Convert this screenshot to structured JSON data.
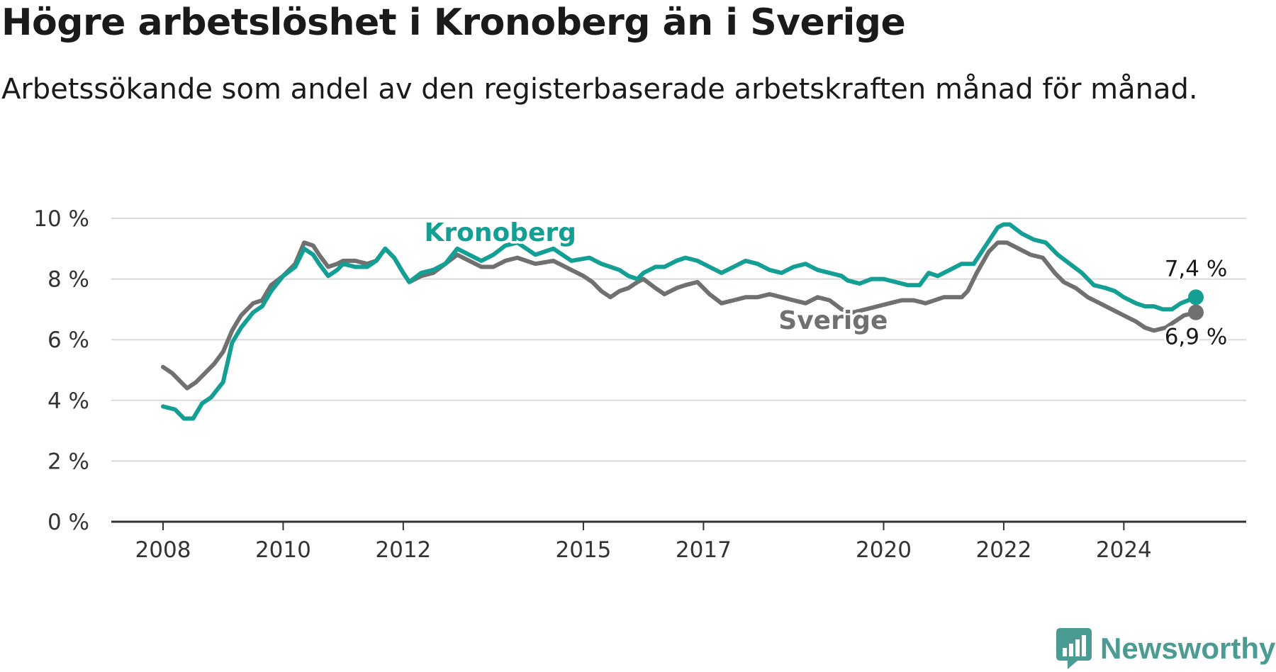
{
  "title": "Högre arbetslöshet i Kronoberg än i Sverige",
  "subtitle": "Arbetssökande som andel av den registerbaserade arbetskraften månad för månad.",
  "logo": {
    "text": "Newsworthy",
    "icon": "newsworthy-logo-icon",
    "color": "#4a9b91"
  },
  "chart_data": {
    "type": "line",
    "title": "",
    "xlabel": "",
    "ylabel": "",
    "xlim": [
      2008,
      2025.2
    ],
    "ylim": [
      0,
      10
    ],
    "grid": true,
    "y_ticks": [
      {
        "value": 0,
        "label": "0 %"
      },
      {
        "value": 2,
        "label": "2 %"
      },
      {
        "value": 4,
        "label": "4 %"
      },
      {
        "value": 6,
        "label": "6 %"
      },
      {
        "value": 8,
        "label": "8 %"
      },
      {
        "value": 10,
        "label": "10 %"
      }
    ],
    "x_ticks": [
      {
        "value": 2008,
        "label": "2008"
      },
      {
        "value": 2010,
        "label": "2010"
      },
      {
        "value": 2012,
        "label": "2012"
      },
      {
        "value": 2015,
        "label": "2015"
      },
      {
        "value": 2017,
        "label": "2017"
      },
      {
        "value": 2020,
        "label": "2020"
      },
      {
        "value": 2022,
        "label": "2022"
      },
      {
        "value": 2024,
        "label": "2024"
      }
    ],
    "series": [
      {
        "name": "Kronoberg",
        "color": "#139f93",
        "end_label": "7,4 %",
        "points": [
          [
            2008.0,
            3.8
          ],
          [
            2008.2,
            3.7
          ],
          [
            2008.35,
            3.4
          ],
          [
            2008.5,
            3.4
          ],
          [
            2008.65,
            3.9
          ],
          [
            2008.8,
            4.1
          ],
          [
            2009.0,
            4.6
          ],
          [
            2009.15,
            5.9
          ],
          [
            2009.3,
            6.4
          ],
          [
            2009.5,
            6.9
          ],
          [
            2009.65,
            7.1
          ],
          [
            2009.8,
            7.6
          ],
          [
            2010.0,
            8.1
          ],
          [
            2010.2,
            8.4
          ],
          [
            2010.35,
            9.0
          ],
          [
            2010.5,
            8.8
          ],
          [
            2010.6,
            8.5
          ],
          [
            2010.75,
            8.1
          ],
          [
            2010.9,
            8.3
          ],
          [
            2011.0,
            8.5
          ],
          [
            2011.2,
            8.4
          ],
          [
            2011.4,
            8.4
          ],
          [
            2011.55,
            8.6
          ],
          [
            2011.7,
            9.0
          ],
          [
            2011.85,
            8.7
          ],
          [
            2012.0,
            8.2
          ],
          [
            2012.1,
            7.9
          ],
          [
            2012.3,
            8.2
          ],
          [
            2012.5,
            8.3
          ],
          [
            2012.7,
            8.5
          ],
          [
            2012.9,
            9.0
          ],
          [
            2013.1,
            8.8
          ],
          [
            2013.3,
            8.6
          ],
          [
            2013.5,
            8.8
          ],
          [
            2013.7,
            9.1
          ],
          [
            2013.9,
            9.2
          ],
          [
            2014.2,
            8.8
          ],
          [
            2014.5,
            9.0
          ],
          [
            2014.8,
            8.6
          ],
          [
            2015.1,
            8.7
          ],
          [
            2015.3,
            8.5
          ],
          [
            2015.45,
            8.4
          ],
          [
            2015.6,
            8.3
          ],
          [
            2015.75,
            8.1
          ],
          [
            2015.9,
            8.0
          ],
          [
            2016.0,
            8.2
          ],
          [
            2016.2,
            8.4
          ],
          [
            2016.35,
            8.4
          ],
          [
            2016.55,
            8.6
          ],
          [
            2016.7,
            8.7
          ],
          [
            2016.9,
            8.6
          ],
          [
            2017.1,
            8.4
          ],
          [
            2017.3,
            8.2
          ],
          [
            2017.5,
            8.4
          ],
          [
            2017.7,
            8.6
          ],
          [
            2017.9,
            8.5
          ],
          [
            2018.1,
            8.3
          ],
          [
            2018.3,
            8.2
          ],
          [
            2018.5,
            8.4
          ],
          [
            2018.7,
            8.5
          ],
          [
            2018.9,
            8.3
          ],
          [
            2019.1,
            8.2
          ],
          [
            2019.3,
            8.1
          ],
          [
            2019.4,
            7.95
          ],
          [
            2019.6,
            7.85
          ],
          [
            2019.8,
            8.0
          ],
          [
            2020.0,
            8.0
          ],
          [
            2020.2,
            7.9
          ],
          [
            2020.4,
            7.8
          ],
          [
            2020.6,
            7.8
          ],
          [
            2020.75,
            8.2
          ],
          [
            2020.9,
            8.1
          ],
          [
            2021.1,
            8.3
          ],
          [
            2021.3,
            8.5
          ],
          [
            2021.5,
            8.5
          ],
          [
            2021.7,
            9.1
          ],
          [
            2021.9,
            9.7
          ],
          [
            2022.0,
            9.8
          ],
          [
            2022.1,
            9.8
          ],
          [
            2022.3,
            9.5
          ],
          [
            2022.5,
            9.3
          ],
          [
            2022.7,
            9.2
          ],
          [
            2022.9,
            8.8
          ],
          [
            2023.1,
            8.5
          ],
          [
            2023.3,
            8.2
          ],
          [
            2023.5,
            7.8
          ],
          [
            2023.7,
            7.7
          ],
          [
            2023.85,
            7.6
          ],
          [
            2024.0,
            7.4
          ],
          [
            2024.2,
            7.2
          ],
          [
            2024.35,
            7.1
          ],
          [
            2024.5,
            7.1
          ],
          [
            2024.65,
            7.0
          ],
          [
            2024.8,
            7.0
          ],
          [
            2024.95,
            7.2
          ],
          [
            2025.2,
            7.4
          ]
        ]
      },
      {
        "name": "Sverige",
        "color": "#707070",
        "end_label": "6,9 %",
        "points": [
          [
            2008.0,
            5.1
          ],
          [
            2008.15,
            4.9
          ],
          [
            2008.3,
            4.6
          ],
          [
            2008.4,
            4.4
          ],
          [
            2008.55,
            4.6
          ],
          [
            2008.7,
            4.9
          ],
          [
            2008.85,
            5.2
          ],
          [
            2009.0,
            5.6
          ],
          [
            2009.15,
            6.3
          ],
          [
            2009.3,
            6.8
          ],
          [
            2009.5,
            7.2
          ],
          [
            2009.65,
            7.3
          ],
          [
            2009.8,
            7.8
          ],
          [
            2010.0,
            8.1
          ],
          [
            2010.2,
            8.5
          ],
          [
            2010.35,
            9.2
          ],
          [
            2010.5,
            9.1
          ],
          [
            2010.6,
            8.8
          ],
          [
            2010.75,
            8.4
          ],
          [
            2010.9,
            8.5
          ],
          [
            2011.0,
            8.6
          ],
          [
            2011.2,
            8.6
          ],
          [
            2011.4,
            8.5
          ],
          [
            2011.55,
            8.6
          ],
          [
            2011.7,
            9.0
          ],
          [
            2011.85,
            8.7
          ],
          [
            2012.0,
            8.2
          ],
          [
            2012.1,
            7.9
          ],
          [
            2012.3,
            8.1
          ],
          [
            2012.5,
            8.2
          ],
          [
            2012.7,
            8.5
          ],
          [
            2012.9,
            8.8
          ],
          [
            2013.1,
            8.6
          ],
          [
            2013.3,
            8.4
          ],
          [
            2013.5,
            8.4
          ],
          [
            2013.7,
            8.6
          ],
          [
            2013.9,
            8.7
          ],
          [
            2014.2,
            8.5
          ],
          [
            2014.5,
            8.6
          ],
          [
            2014.8,
            8.3
          ],
          [
            2015.0,
            8.1
          ],
          [
            2015.15,
            7.9
          ],
          [
            2015.3,
            7.6
          ],
          [
            2015.45,
            7.4
          ],
          [
            2015.6,
            7.6
          ],
          [
            2015.75,
            7.7
          ],
          [
            2015.9,
            7.9
          ],
          [
            2016.0,
            8.0
          ],
          [
            2016.2,
            7.7
          ],
          [
            2016.35,
            7.5
          ],
          [
            2016.55,
            7.7
          ],
          [
            2016.7,
            7.8
          ],
          [
            2016.9,
            7.9
          ],
          [
            2017.1,
            7.5
          ],
          [
            2017.3,
            7.2
          ],
          [
            2017.5,
            7.3
          ],
          [
            2017.7,
            7.4
          ],
          [
            2017.9,
            7.4
          ],
          [
            2018.1,
            7.5
          ],
          [
            2018.3,
            7.4
          ],
          [
            2018.5,
            7.3
          ],
          [
            2018.7,
            7.2
          ],
          [
            2018.9,
            7.4
          ],
          [
            2019.1,
            7.3
          ],
          [
            2019.3,
            7.0
          ],
          [
            2019.5,
            6.9
          ],
          [
            2019.7,
            7.0
          ],
          [
            2019.9,
            7.1
          ],
          [
            2020.1,
            7.2
          ],
          [
            2020.3,
            7.3
          ],
          [
            2020.5,
            7.3
          ],
          [
            2020.7,
            7.2
          ],
          [
            2021.0,
            7.4
          ],
          [
            2021.3,
            7.4
          ],
          [
            2021.4,
            7.6
          ],
          [
            2021.55,
            8.2
          ],
          [
            2021.75,
            8.9
          ],
          [
            2021.9,
            9.2
          ],
          [
            2022.05,
            9.2
          ],
          [
            2022.25,
            9.0
          ],
          [
            2022.45,
            8.8
          ],
          [
            2022.65,
            8.7
          ],
          [
            2022.85,
            8.2
          ],
          [
            2023.0,
            7.9
          ],
          [
            2023.2,
            7.7
          ],
          [
            2023.4,
            7.4
          ],
          [
            2023.6,
            7.2
          ],
          [
            2023.8,
            7.0
          ],
          [
            2024.0,
            6.8
          ],
          [
            2024.2,
            6.6
          ],
          [
            2024.35,
            6.4
          ],
          [
            2024.5,
            6.3
          ],
          [
            2024.7,
            6.4
          ],
          [
            2024.85,
            6.6
          ],
          [
            2025.0,
            6.8
          ],
          [
            2025.2,
            6.9
          ]
        ]
      }
    ]
  }
}
